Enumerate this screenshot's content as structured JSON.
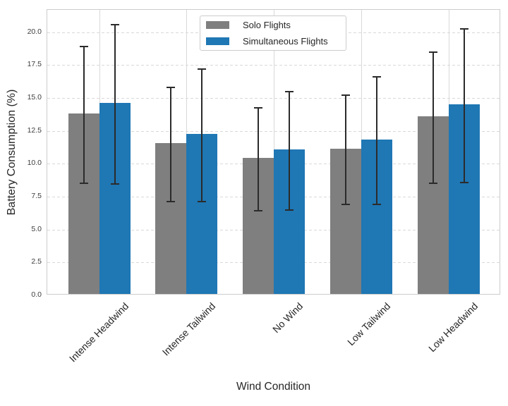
{
  "chart_data": {
    "type": "bar",
    "title": "",
    "xlabel": "Wind Condition",
    "ylabel": "Battery Consumption (%)",
    "categories": [
      "Intense Headwind",
      "Intense Tailwind",
      "No Wind",
      "Low Tailwind",
      "Low Headwind"
    ],
    "series": [
      {
        "name": "Solo Flights",
        "color": "#7f7f7f",
        "values": [
          13.7,
          11.45,
          10.35,
          11.05,
          13.5
        ],
        "errors": [
          5.2,
          4.35,
          3.9,
          4.15,
          5.0
        ]
      },
      {
        "name": "Simultaneous Flights",
        "color": "#1f77b4",
        "values": [
          14.5,
          12.15,
          11.0,
          11.75,
          14.4
        ],
        "errors": [
          6.05,
          5.05,
          4.5,
          4.85,
          5.85
        ]
      }
    ],
    "ylim": [
      0,
      21.7
    ],
    "yticks": [
      0.0,
      2.5,
      5.0,
      7.5,
      10.0,
      12.5,
      15.0,
      17.5,
      20.0
    ],
    "ytick_labels": [
      "0.0",
      "2.5",
      "5.0",
      "7.5",
      "10.0",
      "12.5",
      "15.0",
      "17.5",
      "20.0"
    ],
    "error_bar_color": "#2b2b2b",
    "grid_color": "#d9d9d9",
    "grid": "horizontal dashed, vertical solid at category centers",
    "legend_position": "upper center inside axes",
    "has_error_caps": true
  }
}
